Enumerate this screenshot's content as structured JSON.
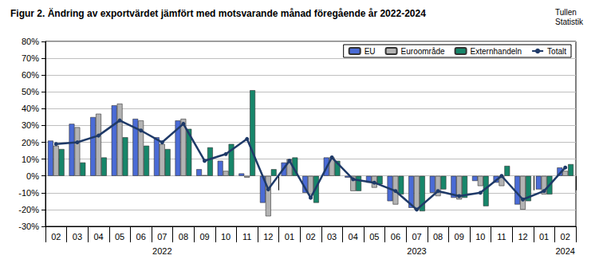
{
  "chart_data": {
    "type": "bar",
    "title": "Figur 2. Ändring av exportvärdet jämfört med motsvarande månad föregående år 2022-2024",
    "source": "Tullen\nStatistik",
    "categories": [
      "02",
      "03",
      "04",
      "05",
      "06",
      "07",
      "08",
      "09",
      "10",
      "11",
      "12",
      "01",
      "02",
      "03",
      "04",
      "05",
      "06",
      "07",
      "08",
      "09",
      "10",
      "11",
      "12",
      "01",
      "02"
    ],
    "category_years": [
      "2022",
      "2022",
      "2022",
      "2022",
      "2022",
      "2022",
      "2022",
      "2022",
      "2022",
      "2022",
      "2022",
      "2023",
      "2023",
      "2023",
      "2023",
      "2023",
      "2023",
      "2023",
      "2023",
      "2023",
      "2023",
      "2023",
      "2023",
      "2024",
      "2024"
    ],
    "series": [
      {
        "name": "EU",
        "type": "bar",
        "color": "#4a6bd6",
        "values": [
          21,
          31,
          35,
          42,
          34,
          23,
          33,
          4,
          9,
          1.5,
          -16,
          8,
          -10,
          11,
          -1,
          -4,
          -15,
          -19,
          -10,
          -13,
          -3,
          -4,
          -17,
          -8,
          5
        ]
      },
      {
        "name": "Euroområde",
        "type": "bar",
        "color": "#b3b3b3",
        "values": [
          18,
          29,
          37,
          43,
          33,
          19,
          34,
          0.5,
          3,
          -1,
          -24,
          10,
          -11,
          11,
          -9,
          -7,
          -17,
          -20,
          -12,
          -14,
          -6,
          -6,
          -20,
          -11,
          3
        ]
      },
      {
        "name": "Externhandeln",
        "type": "bar",
        "color": "#17866a",
        "values": [
          16,
          8,
          11,
          23,
          18,
          16,
          28,
          17,
          19,
          51,
          4,
          11,
          -16,
          9,
          -9,
          -5,
          -11,
          -21,
          -8,
          -13,
          -18,
          6,
          -15,
          -11,
          7
        ]
      },
      {
        "name": "Totalt",
        "type": "line",
        "color": "#1f3a68",
        "marker": "circle",
        "line_style": "solid",
        "values": [
          19,
          20,
          24,
          33,
          27,
          20,
          31,
          9,
          13,
          22,
          -8,
          9,
          -13,
          11,
          -2,
          -4,
          -9,
          -20,
          -9,
          -12,
          -10,
          0,
          -14,
          -9,
          5
        ]
      }
    ],
    "ylim": [
      -30,
      80
    ],
    "yticks": [
      {
        "value": -30,
        "label": "-30%"
      },
      {
        "value": -20,
        "label": "-20%"
      },
      {
        "value": -10,
        "label": "-10%"
      },
      {
        "value": 0,
        "label": "0%"
      },
      {
        "value": 10,
        "label": "10%"
      },
      {
        "value": 20,
        "label": "20%"
      },
      {
        "value": 30,
        "label": "30%"
      },
      {
        "value": 40,
        "label": "40%"
      },
      {
        "value": 50,
        "label": "50%"
      },
      {
        "value": 60,
        "label": "60%"
      },
      {
        "value": 70,
        "label": "70%"
      },
      {
        "value": 80,
        "label": "80%"
      }
    ],
    "grid": true,
    "legend": "top-right",
    "data_labels": false
  }
}
